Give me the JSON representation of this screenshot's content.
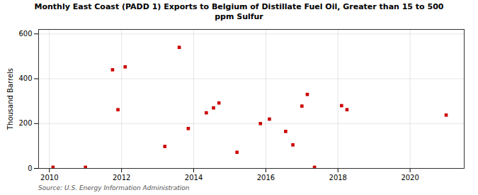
{
  "chart_data": {
    "type": "scatter",
    "title": "Monthly East Coast (PADD 1) Exports to Belgium of Distillate Fuel Oil, Greater than 15 to 500\nppm Sulfur",
    "ylabel": "Thousand Barrels",
    "source": "Source: U.S. Energy Information Administration",
    "x": [
      2010.1,
      2011.0,
      2011.75,
      2011.9,
      2012.1,
      2013.2,
      2013.6,
      2013.85,
      2014.35,
      2014.55,
      2014.7,
      2015.2,
      2015.85,
      2016.1,
      2016.55,
      2016.75,
      2017.0,
      2017.15,
      2017.35,
      2018.1,
      2018.25,
      2021.0
    ],
    "values": [
      5,
      5,
      440,
      262,
      453,
      98,
      540,
      178,
      248,
      270,
      292,
      72,
      200,
      220,
      165,
      105,
      278,
      330,
      5,
      280,
      262,
      238
    ],
    "color": "#cc0000",
    "marker": "square",
    "xlim": [
      2009.7,
      2021.5
    ],
    "ylim": [
      0,
      620
    ],
    "xticks": [
      2010,
      2012,
      2014,
      2016,
      2018,
      2020
    ],
    "yticks": [
      0,
      200,
      400,
      600
    ],
    "grid": true
  }
}
